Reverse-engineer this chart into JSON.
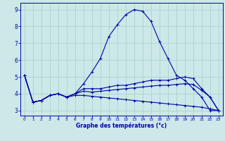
{
  "xlabel": "Graphe des températures (°c)",
  "background_color": "#cce8e8",
  "grid_color": "#aacccc",
  "line_color": "#0000aa",
  "ylim": [
    2.7,
    9.4
  ],
  "xlim": [
    -0.5,
    23.5
  ],
  "x_ticks": [
    0,
    1,
    2,
    3,
    4,
    5,
    6,
    7,
    8,
    9,
    10,
    11,
    12,
    13,
    14,
    15,
    16,
    17,
    18,
    19,
    20,
    21,
    22,
    23
  ],
  "y_ticks": [
    3,
    4,
    5,
    6,
    7,
    8,
    9
  ],
  "curve1": [
    5.1,
    3.5,
    3.6,
    3.9,
    4.0,
    3.8,
    4.0,
    4.6,
    5.3,
    6.1,
    7.4,
    8.1,
    8.7,
    9.0,
    8.9,
    8.3,
    7.1,
    6.1,
    5.1,
    4.8,
    4.3,
    3.8,
    3.0,
    3.0
  ],
  "curve2": [
    5.1,
    3.5,
    3.6,
    3.9,
    4.0,
    3.8,
    4.0,
    4.3,
    4.3,
    4.3,
    4.4,
    4.5,
    4.5,
    4.6,
    4.7,
    4.8,
    4.8,
    4.8,
    4.9,
    5.0,
    4.9,
    4.3,
    3.8,
    3.0
  ],
  "curve3": [
    5.1,
    3.5,
    3.6,
    3.9,
    4.0,
    3.8,
    3.9,
    3.9,
    3.85,
    3.8,
    3.75,
    3.7,
    3.65,
    3.6,
    3.55,
    3.5,
    3.45,
    3.4,
    3.35,
    3.3,
    3.25,
    3.2,
    3.1,
    3.0
  ],
  "curve4": [
    5.1,
    3.5,
    3.6,
    3.9,
    4.0,
    3.8,
    4.0,
    4.15,
    4.1,
    4.15,
    4.2,
    4.25,
    4.3,
    4.35,
    4.4,
    4.45,
    4.5,
    4.5,
    4.55,
    4.6,
    4.55,
    4.2,
    3.8,
    3.0
  ]
}
